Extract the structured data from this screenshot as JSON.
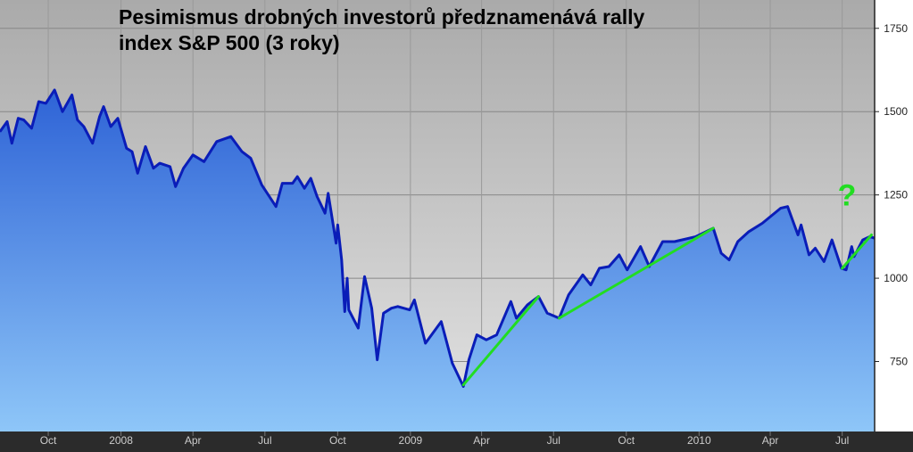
{
  "chart_data": {
    "type": "area",
    "title_lines": [
      "Pesimismus drobných investorů předznamenává rally",
      "index S&P 500 (3 roky)"
    ],
    "xlabel": "",
    "ylabel": "",
    "x_ticks": [
      {
        "label": "Oct",
        "date": "2007-10-01"
      },
      {
        "label": "2008",
        "date": "2008-01-01"
      },
      {
        "label": "Apr",
        "date": "2008-04-01"
      },
      {
        "label": "Jul",
        "date": "2008-07-01"
      },
      {
        "label": "Oct",
        "date": "2008-10-01"
      },
      {
        "label": "2009",
        "date": "2009-01-01"
      },
      {
        "label": "Apr",
        "date": "2009-04-01"
      },
      {
        "label": "Jul",
        "date": "2009-07-01"
      },
      {
        "label": "Oct",
        "date": "2009-10-01"
      },
      {
        "label": "2010",
        "date": "2010-01-01"
      },
      {
        "label": "Apr",
        "date": "2010-04-01"
      },
      {
        "label": "Jul",
        "date": "2010-07-01"
      }
    ],
    "y_ticks": [
      750,
      1000,
      1250,
      1500,
      1750
    ],
    "xlim": [
      "2007-08-01",
      "2010-08-11"
    ],
    "ylim": [
      540,
      1835
    ],
    "grid": true,
    "y_axis_side": "right",
    "series": [
      {
        "color": "#0a1db8",
        "points": [
          [
            "2007-08-01",
            1440
          ],
          [
            "2007-08-10",
            1470
          ],
          [
            "2007-08-16",
            1405
          ],
          [
            "2007-08-24",
            1480
          ],
          [
            "2007-08-31",
            1475
          ],
          [
            "2007-09-10",
            1450
          ],
          [
            "2007-09-19",
            1530
          ],
          [
            "2007-09-28",
            1525
          ],
          [
            "2007-10-09",
            1565
          ],
          [
            "2007-10-19",
            1500
          ],
          [
            "2007-10-31",
            1550
          ],
          [
            "2007-11-07",
            1475
          ],
          [
            "2007-11-15",
            1455
          ],
          [
            "2007-11-26",
            1405
          ],
          [
            "2007-12-05",
            1485
          ],
          [
            "2007-12-10",
            1515
          ],
          [
            "2007-12-19",
            1455
          ],
          [
            "2007-12-28",
            1480
          ],
          [
            "2008-01-08",
            1390
          ],
          [
            "2008-01-15",
            1380
          ],
          [
            "2008-01-22",
            1315
          ],
          [
            "2008-02-01",
            1395
          ],
          [
            "2008-02-11",
            1330
          ],
          [
            "2008-02-19",
            1345
          ],
          [
            "2008-03-03",
            1335
          ],
          [
            "2008-03-10",
            1275
          ],
          [
            "2008-03-20",
            1330
          ],
          [
            "2008-04-01",
            1370
          ],
          [
            "2008-04-15",
            1350
          ],
          [
            "2008-05-01",
            1410
          ],
          [
            "2008-05-19",
            1425
          ],
          [
            "2008-06-02",
            1380
          ],
          [
            "2008-06-13",
            1360
          ],
          [
            "2008-06-27",
            1280
          ],
          [
            "2008-07-15",
            1215
          ],
          [
            "2008-07-23",
            1285
          ],
          [
            "2008-08-05",
            1285
          ],
          [
            "2008-08-11",
            1305
          ],
          [
            "2008-08-20",
            1270
          ],
          [
            "2008-08-28",
            1300
          ],
          [
            "2008-09-05",
            1245
          ],
          [
            "2008-09-15",
            1195
          ],
          [
            "2008-09-19",
            1255
          ],
          [
            "2008-09-29",
            1105
          ],
          [
            "2008-10-01",
            1160
          ],
          [
            "2008-10-06",
            1055
          ],
          [
            "2008-10-10",
            900
          ],
          [
            "2008-10-13",
            1000
          ],
          [
            "2008-10-15",
            905
          ],
          [
            "2008-10-27",
            850
          ],
          [
            "2008-11-04",
            1005
          ],
          [
            "2008-11-13",
            910
          ],
          [
            "2008-11-20",
            755
          ],
          [
            "2008-11-28",
            895
          ],
          [
            "2008-12-08",
            910
          ],
          [
            "2008-12-16",
            915
          ],
          [
            "2008-12-31",
            905
          ],
          [
            "2009-01-06",
            935
          ],
          [
            "2009-01-20",
            805
          ],
          [
            "2009-02-09",
            870
          ],
          [
            "2009-02-23",
            745
          ],
          [
            "2009-03-09",
            675
          ],
          [
            "2009-03-16",
            755
          ],
          [
            "2009-03-26",
            830
          ],
          [
            "2009-04-07",
            815
          ],
          [
            "2009-04-20",
            830
          ],
          [
            "2009-05-08",
            930
          ],
          [
            "2009-05-15",
            880
          ],
          [
            "2009-05-29",
            920
          ],
          [
            "2009-06-12",
            945
          ],
          [
            "2009-06-23",
            895
          ],
          [
            "2009-07-08",
            880
          ],
          [
            "2009-07-20",
            950
          ],
          [
            "2009-08-07",
            1010
          ],
          [
            "2009-08-17",
            980
          ],
          [
            "2009-08-28",
            1030
          ],
          [
            "2009-09-09",
            1035
          ],
          [
            "2009-09-22",
            1070
          ],
          [
            "2009-10-02",
            1025
          ],
          [
            "2009-10-19",
            1095
          ],
          [
            "2009-10-30",
            1035
          ],
          [
            "2009-11-16",
            1110
          ],
          [
            "2009-12-01",
            1110
          ],
          [
            "2009-12-28",
            1125
          ],
          [
            "2010-01-19",
            1150
          ],
          [
            "2010-01-29",
            1075
          ],
          [
            "2010-02-08",
            1055
          ],
          [
            "2010-02-19",
            1110
          ],
          [
            "2010-03-05",
            1140
          ],
          [
            "2010-03-22",
            1165
          ],
          [
            "2010-04-14",
            1210
          ],
          [
            "2010-04-23",
            1215
          ],
          [
            "2010-05-06",
            1130
          ],
          [
            "2010-05-10",
            1160
          ],
          [
            "2010-05-20",
            1070
          ],
          [
            "2010-05-28",
            1090
          ],
          [
            "2010-06-08",
            1050
          ],
          [
            "2010-06-18",
            1115
          ],
          [
            "2010-06-30",
            1030
          ],
          [
            "2010-07-06",
            1025
          ],
          [
            "2010-07-13",
            1095
          ],
          [
            "2010-07-16",
            1065
          ],
          [
            "2010-07-27",
            1115
          ],
          [
            "2010-08-05",
            1125
          ],
          [
            "2010-08-11",
            1120
          ]
        ]
      }
    ],
    "trend_lines": [
      {
        "color": "#22dd22",
        "from": [
          "2009-03-09",
          680
        ],
        "to": [
          "2009-06-12",
          945
        ]
      },
      {
        "color": "#22dd22",
        "from": [
          "2009-07-08",
          880
        ],
        "to": [
          "2010-01-19",
          1150
        ]
      },
      {
        "color": "#22dd22",
        "from": [
          "2010-07-01",
          1030
        ],
        "to": [
          "2010-08-07",
          1130
        ]
      }
    ],
    "annotations": [
      {
        "text": "?",
        "date": "2010-07-07",
        "value": 1250,
        "color": "#22dd22"
      }
    ],
    "colors": {
      "background_top": "#aaaaaa",
      "background_bottom": "#e4e4e4",
      "area_top": "#2e63d6",
      "area_bottom": "#8ec6f8",
      "axis_band": "#2b2b2b",
      "axis_text": "#cccccc",
      "line": "#0a1db8",
      "trend": "#22dd22"
    }
  }
}
